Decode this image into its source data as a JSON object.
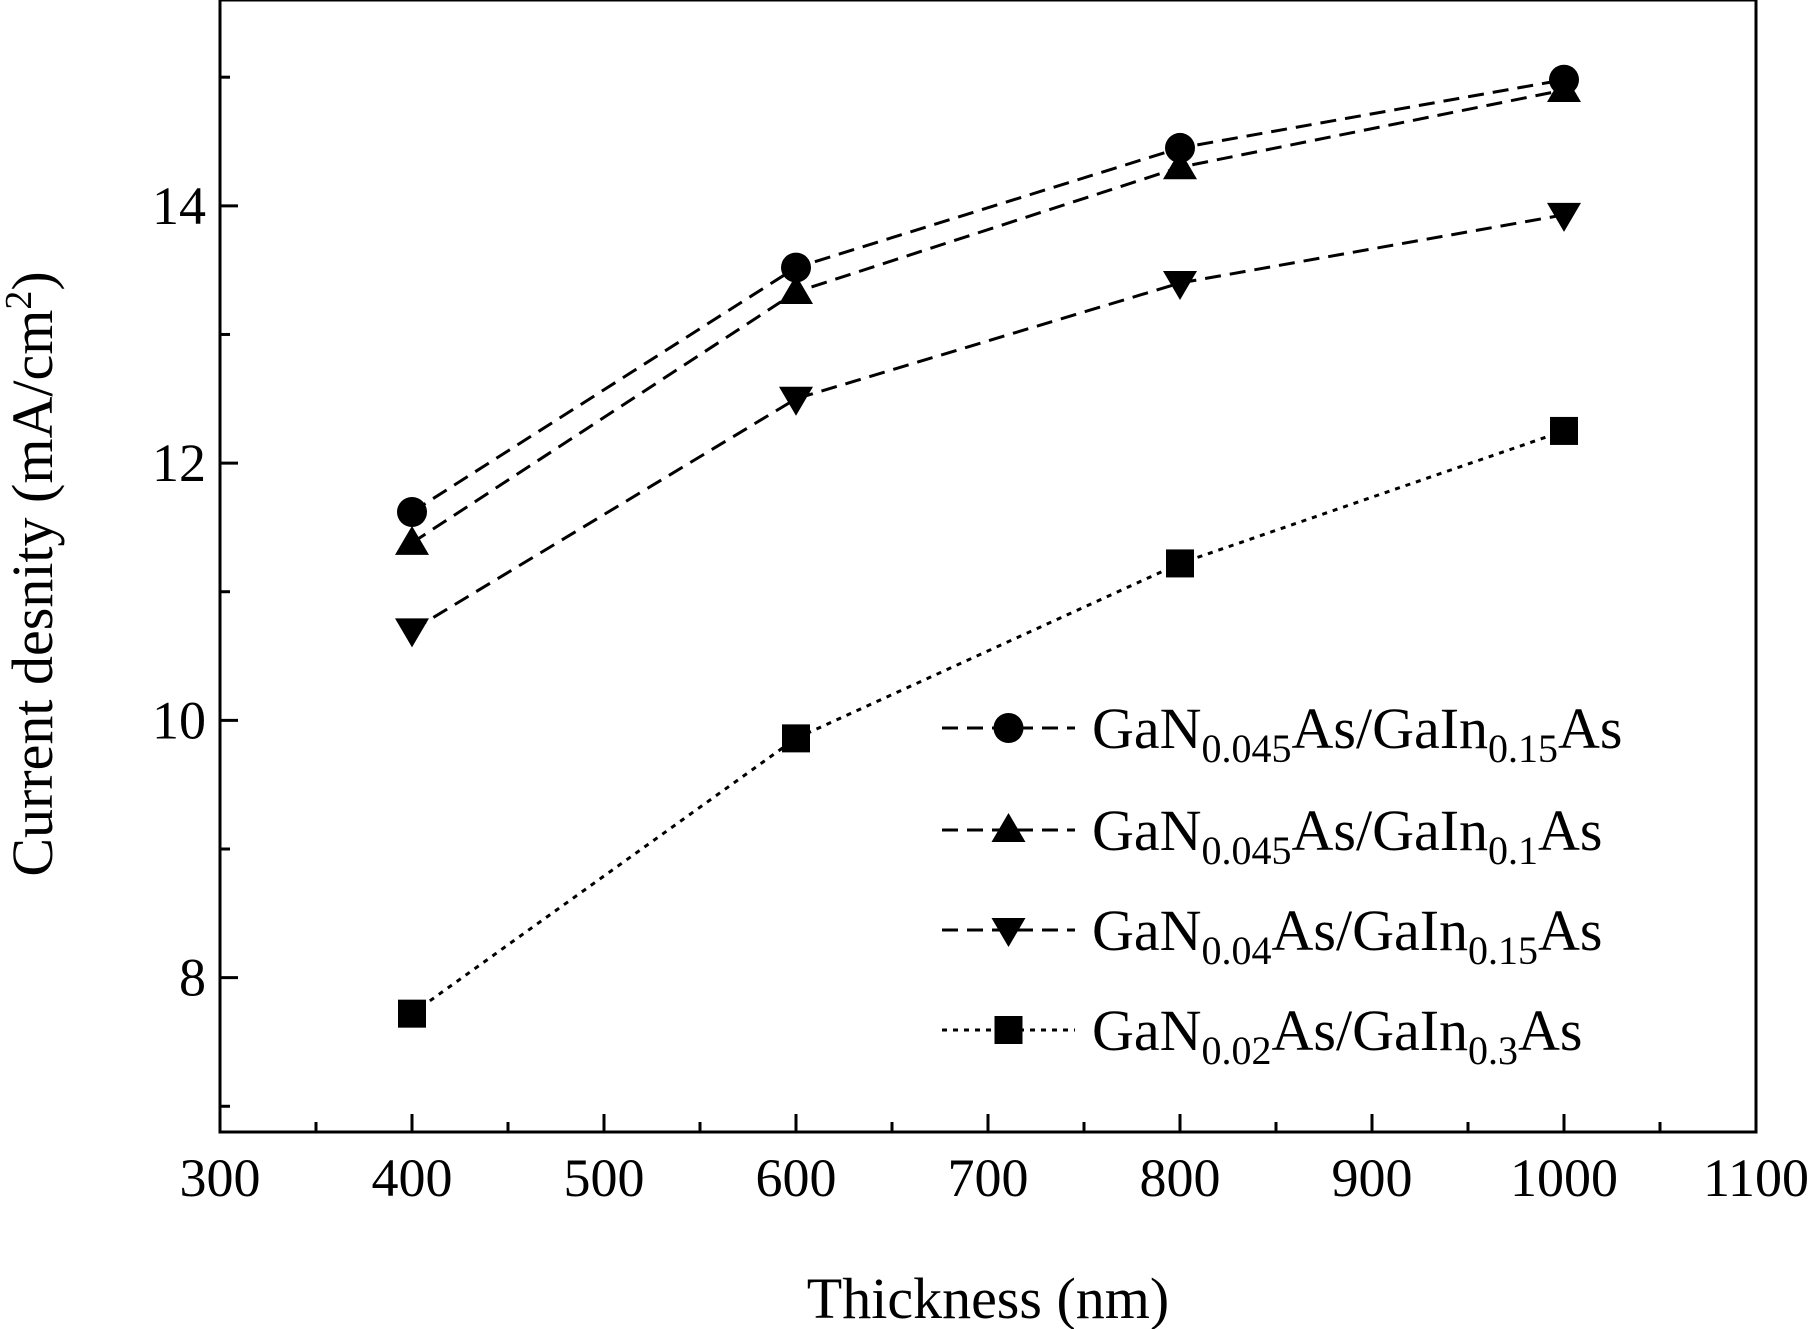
{
  "chart_data": {
    "type": "line",
    "title": "",
    "xlabel": "Thickness (nm)",
    "ylabel": "Current desnity (mA/cm²)",
    "xlim": [
      300,
      1100
    ],
    "ylim": [
      6.8,
      15.6
    ],
    "x_ticks": [
      300,
      400,
      500,
      600,
      700,
      800,
      900,
      1000,
      1100
    ],
    "y_ticks": [
      8,
      10,
      12,
      14
    ],
    "x_tick_labels": [
      "300",
      "400",
      "500",
      "600",
      "700",
      "800",
      "900",
      "1000",
      "1100"
    ],
    "y_tick_labels": [
      "8",
      "10",
      "12",
      "14"
    ],
    "grid": false,
    "legend_position": "lower-right",
    "x": [
      400,
      600,
      800,
      1000
    ],
    "series": [
      {
        "name": "GaN0.045As/GaIn0.15As",
        "name_parts": [
          [
            "GaN",
            ""
          ],
          [
            "0.045",
            "sub"
          ],
          [
            "As/GaIn",
            ""
          ],
          [
            "0.15",
            "sub"
          ],
          [
            "As",
            ""
          ]
        ],
        "marker": "circle",
        "line_style": "dashed",
        "values": [
          11.62,
          13.52,
          14.45,
          14.98
        ]
      },
      {
        "name": "GaN0.045As/GaIn0.1As",
        "name_parts": [
          [
            "GaN",
            ""
          ],
          [
            "0.045",
            "sub"
          ],
          [
            "As/GaIn",
            ""
          ],
          [
            "0.1",
            "sub"
          ],
          [
            "As",
            ""
          ]
        ],
        "marker": "triangle-up",
        "line_style": "dashed",
        "values": [
          11.38,
          13.33,
          14.3,
          14.9
        ]
      },
      {
        "name": "GaN0.04As/GaIn0.15As",
        "name_parts": [
          [
            "GaN",
            ""
          ],
          [
            "0.04",
            "sub"
          ],
          [
            "As/GaIn",
            ""
          ],
          [
            "0.15",
            "sub"
          ],
          [
            "As",
            ""
          ]
        ],
        "marker": "triangle-down",
        "line_style": "dashed",
        "values": [
          10.7,
          12.5,
          13.4,
          13.93
        ]
      },
      {
        "name": "GaN0.02As/GaIn0.3As",
        "name_parts": [
          [
            "GaN",
            ""
          ],
          [
            "0.02",
            "sub"
          ],
          [
            "As/GaIn",
            ""
          ],
          [
            "0.3",
            "sub"
          ],
          [
            "As",
            ""
          ]
        ],
        "marker": "square",
        "line_style": "dotted",
        "values": [
          7.72,
          9.86,
          11.22,
          12.25
        ]
      }
    ]
  }
}
